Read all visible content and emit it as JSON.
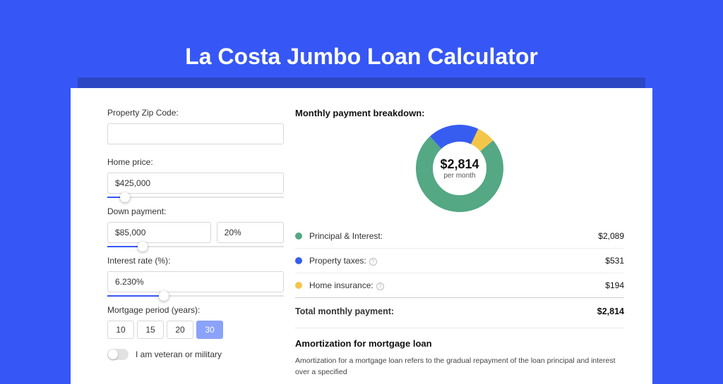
{
  "header": {
    "title": "La Costa Jumbo Loan Calculator"
  },
  "form": {
    "zip_label": "Property Zip Code:",
    "zip_value": "",
    "home_price_label": "Home price:",
    "home_price_value": "$425,000",
    "home_price_slider_pct": 10,
    "down_payment_label": "Down payment:",
    "down_payment_value": "$85,000",
    "down_payment_pct": "20%",
    "down_payment_slider_pct": 20,
    "interest_label": "Interest rate (%):",
    "interest_value": "6.230%",
    "interest_slider_pct": 32,
    "mortgage_period_label": "Mortgage period (years):",
    "periods": [
      "10",
      "15",
      "20",
      "30"
    ],
    "period_active_index": 3,
    "veteran_label": "I am veteran or military"
  },
  "breakdown": {
    "header": "Monthly payment breakdown:",
    "donut_amount": "$2,814",
    "donut_sub": "per month",
    "segments": [
      {
        "label": "Principal & Interest:",
        "amount": "$2,089",
        "color": "#54a884",
        "value": 2089,
        "info": false
      },
      {
        "label": "Property taxes:",
        "amount": "$531",
        "color": "#375df0",
        "value": 531,
        "info": true
      },
      {
        "label": "Home insurance:",
        "amount": "$194",
        "color": "#f3c64a",
        "value": 194,
        "info": true
      }
    ],
    "total_label": "Total monthly payment:",
    "total_amount": "$2,814"
  },
  "donut_style": {
    "radius": 50,
    "stroke_width": 24,
    "start_angle_deg": -40,
    "gap_deg": 0
  },
  "amortization": {
    "title": "Amortization for mortgage loan",
    "text": "Amortization for a mortgage loan refers to the gradual repayment of the loan principal and interest over a specified"
  },
  "colors": {
    "page_bg": "#3657f5",
    "panel_shadow": "#2d46c4",
    "panel_bg": "#ffffff",
    "accent": "#3657f5",
    "period_active": "#8aa2f8"
  }
}
